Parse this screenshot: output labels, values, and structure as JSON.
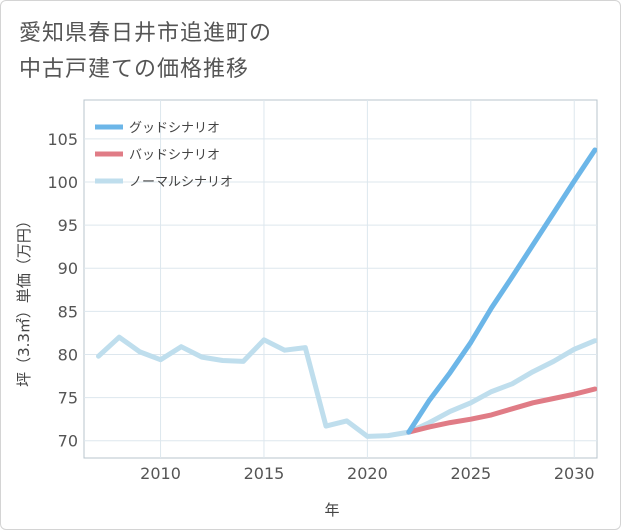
{
  "chart_data": {
    "type": "line",
    "title": [
      "愛知県春日井市追進町の",
      "中古戸建ての価格推移"
    ],
    "xlabel": "年",
    "ylabel": "坪（3.3㎡）単価（万円）",
    "xlim": [
      2006.3,
      2031.1
    ],
    "ylim": [
      68.0,
      109.5
    ],
    "x_ticks": [
      2010,
      2015,
      2020,
      2025,
      2030
    ],
    "y_ticks": [
      70,
      75,
      80,
      85,
      90,
      95,
      100,
      105
    ],
    "grid": true,
    "legend_position": "top-left",
    "series": [
      {
        "name": "グッドシナリオ",
        "color": "#6cb6e8",
        "x": [
          2022,
          2023,
          2024,
          2025,
          2026,
          2027,
          2028,
          2029,
          2030,
          2031
        ],
        "values": [
          71.0,
          74.7,
          77.9,
          81.4,
          85.4,
          89.0,
          92.7,
          96.4,
          100.1,
          103.7
        ]
      },
      {
        "name": "バッドシナリオ",
        "color": "#e07c86",
        "x": [
          2022,
          2023,
          2024,
          2025,
          2026,
          2027,
          2028,
          2029,
          2030,
          2031
        ],
        "values": [
          71.0,
          71.6,
          72.1,
          72.5,
          73.0,
          73.7,
          74.4,
          74.9,
          75.4,
          76.0
        ]
      },
      {
        "name": "ノーマルシナリオ",
        "color": "#bfdeed",
        "x": [
          2007,
          2008,
          2009,
          2010,
          2011,
          2012,
          2013,
          2014,
          2015,
          2016,
          2017,
          2018,
          2019,
          2020,
          2021,
          2022,
          2023,
          2024,
          2025,
          2026,
          2027,
          2028,
          2029,
          2030,
          2031
        ],
        "values": [
          79.8,
          82.0,
          80.3,
          79.4,
          80.9,
          79.7,
          79.3,
          79.2,
          81.7,
          80.5,
          80.8,
          71.7,
          72.3,
          70.5,
          70.6,
          71.0,
          72.1,
          73.4,
          74.4,
          75.7,
          76.6,
          78.0,
          79.2,
          80.6,
          81.6
        ]
      }
    ]
  }
}
